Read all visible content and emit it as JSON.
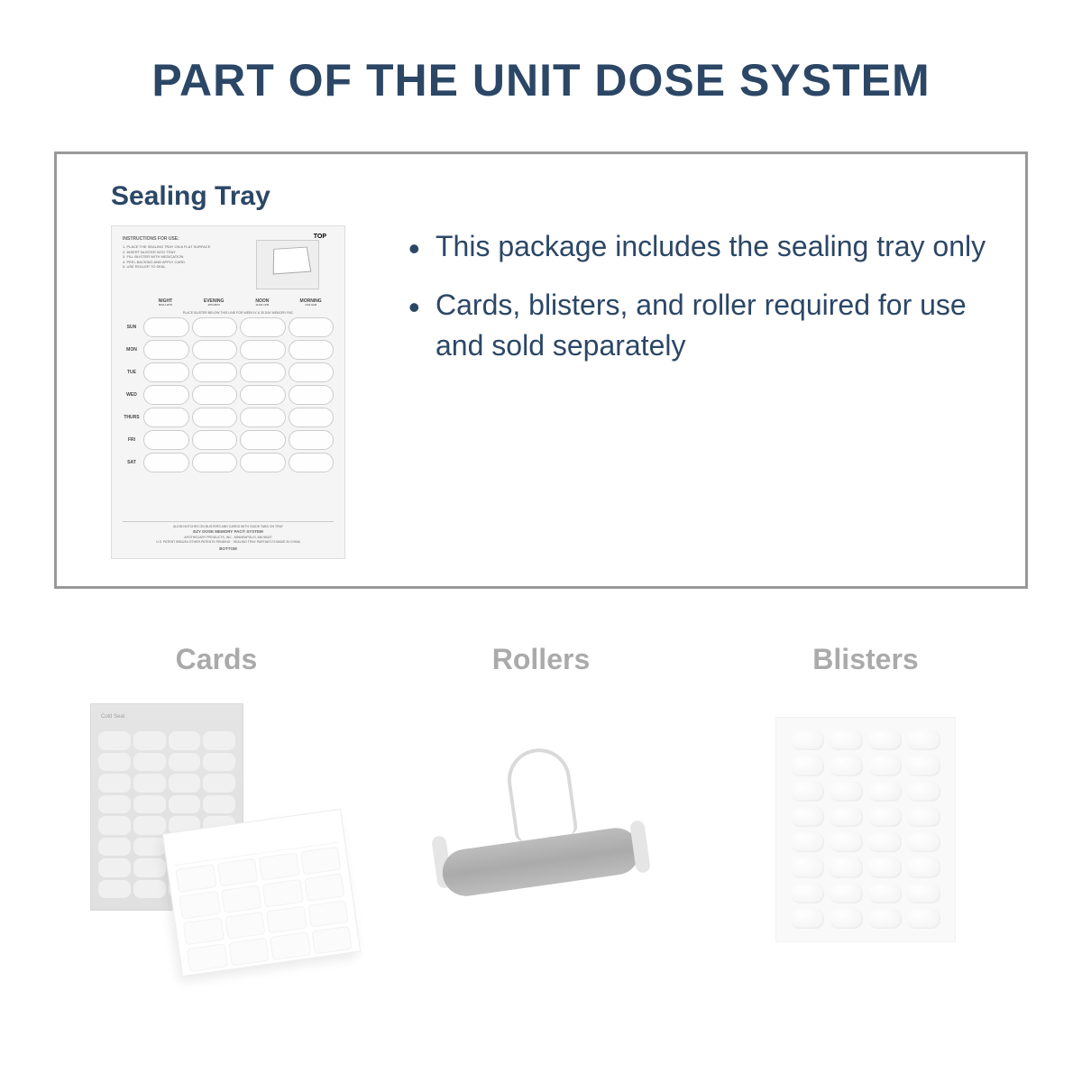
{
  "colors": {
    "primary": "#2c4766",
    "border": "#999999",
    "muted": "#666666",
    "background": "#ffffff"
  },
  "typography": {
    "title_fontsize": 50,
    "section_fontsize": 30,
    "bullet_fontsize": 32,
    "item_title_fontsize": 32
  },
  "title": "PART OF THE UNIT DOSE SYSTEM",
  "main": {
    "tray_title": "Sealing Tray",
    "bullets": [
      "This package includes the sealing tray only",
      "Cards, blisters, and roller required for use and sold separately"
    ],
    "tray": {
      "instructions_title": "INSTRUCTIONS FOR USE:",
      "top_label": "TOP",
      "bottom_label": "BOTTOM",
      "divider_text": "PLACE BLISTER BELOW THIS LINE FOR WEEKLY & 30 DAY MEMORY PAC",
      "columns": [
        {
          "head": "NIGHT",
          "sub": "8PM-12PM"
        },
        {
          "head": "EVENING",
          "sub": "4PM-8PM"
        },
        {
          "head": "NOON",
          "sub": "11AM-1PM"
        },
        {
          "head": "MORNING",
          "sub": "7AM-9AM"
        }
      ],
      "days": [
        "SUN",
        "MON",
        "TUE",
        "WED",
        "THURS",
        "FRI",
        "SAT"
      ],
      "footer_line1": "ALIGN NOTCHES ON BLISTERS AND CARDS WITH GUIDE TABS ON TRAY",
      "footer_line2": "EZY DOSE MEMORY PAC® SYSTEM",
      "footer_line3": "APOTHECARY PRODUCTS, INC., MINNEAPOLIS, MN 55427",
      "footer_line4": "U.S. PATENT 5954204 OTHER PATENTS PENDING · SEALING TRAY PART#67173 MADE IN CHINA"
    }
  },
  "items": [
    {
      "title": "Cards",
      "type": "cards",
      "back_header": "Cold Seal"
    },
    {
      "title": "Rollers",
      "type": "roller"
    },
    {
      "title": "Blisters",
      "type": "blisters"
    }
  ]
}
